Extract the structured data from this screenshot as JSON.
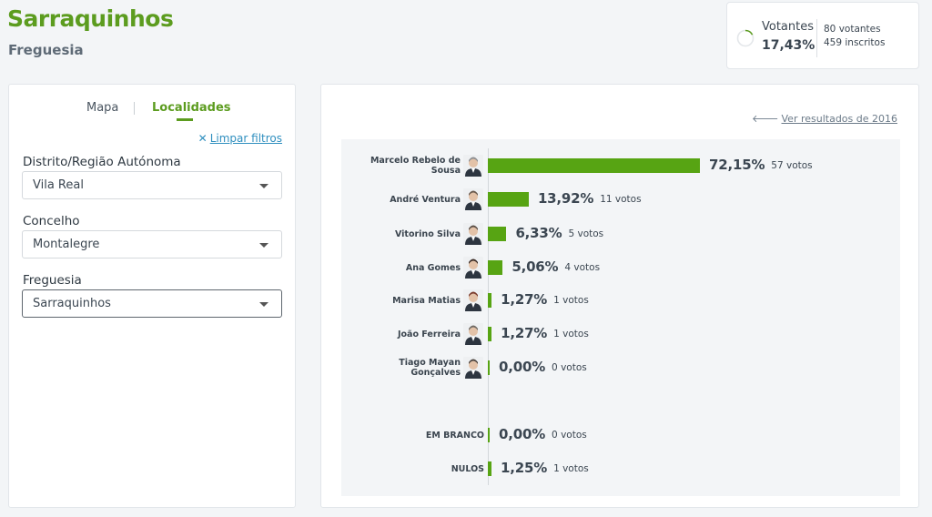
{
  "header": {
    "title": "Sarraquinhos",
    "subtitle": "Freguesia"
  },
  "turnout": {
    "label": "Votantes",
    "percentage": "17,43%",
    "percentage_value": 17.43,
    "voters": "80 votantes",
    "registered": "459 inscritos"
  },
  "filters": {
    "tabs": [
      {
        "label": "Mapa",
        "active": false
      },
      {
        "label": "Localidades",
        "active": true
      }
    ],
    "clear_label": "Limpar filtros",
    "fields": [
      {
        "label": "Distrito/Região Autónoma",
        "value": "Vila Real"
      },
      {
        "label": "Concelho",
        "value": "Montalegre"
      },
      {
        "label": "Freguesia",
        "value": "Sarraquinhos"
      }
    ]
  },
  "results": {
    "link_2016": "Ver resultados de 2016"
  },
  "colors": {
    "accent": "#5c9c1f",
    "bar": "#57a413",
    "link": "#2f8fbf"
  },
  "chart_data": {
    "type": "bar",
    "orientation": "horizontal",
    "categories": [
      "Marcelo Rebelo de Sousa",
      "André Ventura",
      "Vitorino Silva",
      "Ana Gomes",
      "Marisa Matias",
      "João Ferreira",
      "Tiago Mayan Gonçalves",
      "EM BRANCO",
      "NULOS"
    ],
    "values": [
      72.15,
      13.92,
      6.33,
      5.06,
      1.27,
      1.27,
      0.0,
      0.0,
      1.25
    ],
    "value_labels": [
      "72,15%",
      "13,92%",
      "6,33%",
      "5,06%",
      "1,27%",
      "1,27%",
      "0,00%",
      "0,00%",
      "1,25%"
    ],
    "votes": [
      "57 votos",
      "11 votos",
      "5 votos",
      "4 votos",
      "1 votos",
      "1 votos",
      "0 votos",
      "0 votos",
      "1 votos"
    ],
    "has_photo": [
      true,
      true,
      true,
      true,
      true,
      true,
      true,
      false,
      false
    ],
    "xlim": [
      0,
      100
    ],
    "grid": false,
    "legend": "none"
  }
}
